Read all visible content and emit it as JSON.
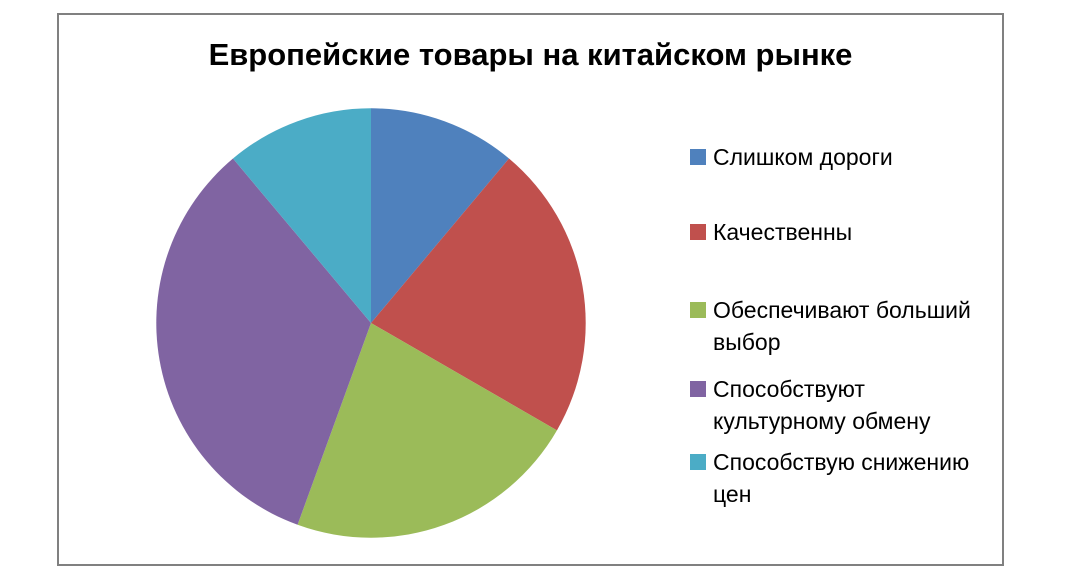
{
  "title": "Европейские товары на китайском рынке",
  "frame": {
    "border_color": "#808080",
    "background_color": "#ffffff"
  },
  "chart_data": {
    "type": "pie",
    "title": "Европейские товары на китайском рынке",
    "start_angle_deg": 0,
    "direction": "clockwise",
    "legend_position": "right",
    "data_labels": "none",
    "slices": [
      {
        "label": "Слишком дороги",
        "value_percent": 11.1,
        "angle_deg": 40,
        "color": "#4F81BD"
      },
      {
        "label": "Качественны",
        "value_percent": 22.2,
        "angle_deg": 80,
        "color": "#C0504D"
      },
      {
        "label": "Обеспечивают больший выбор",
        "value_percent": 22.2,
        "angle_deg": 80,
        "color": "#9BBB59"
      },
      {
        "label": "Способствуют культурному обмену",
        "value_percent": 33.3,
        "angle_deg": 120,
        "color": "#8064A2"
      },
      {
        "label": "Способствую снижению цен",
        "value_percent": 11.1,
        "angle_deg": 40,
        "color": "#4BACC6"
      }
    ]
  }
}
